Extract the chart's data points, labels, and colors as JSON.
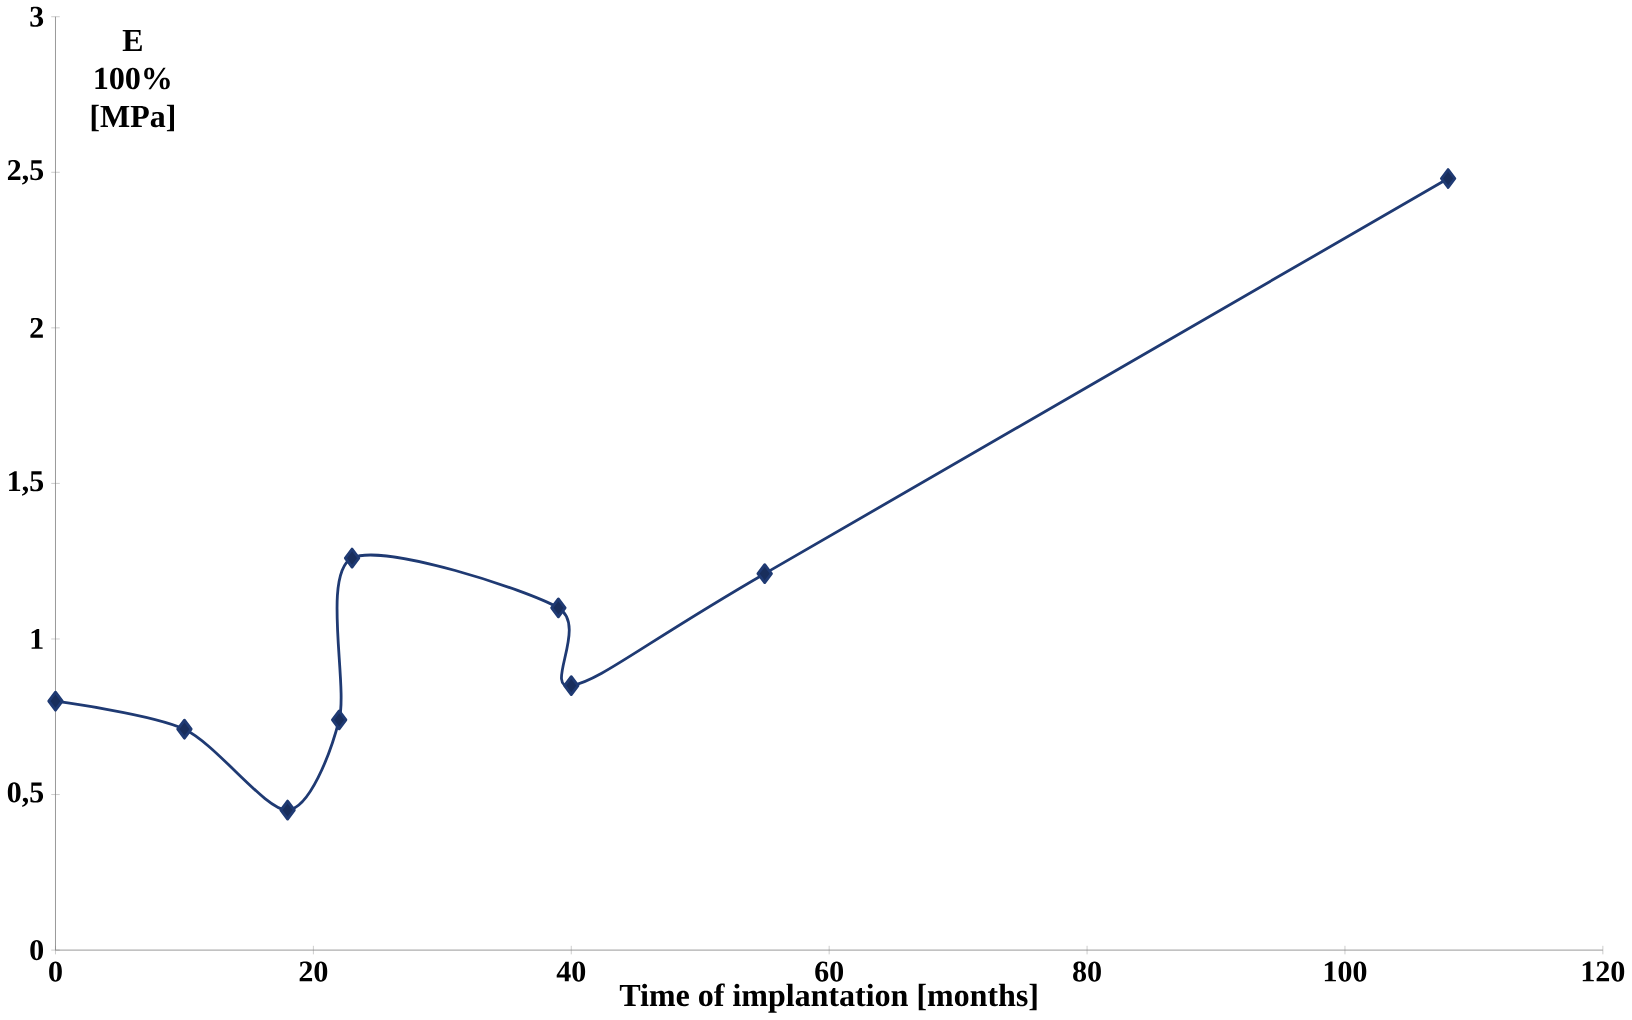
{
  "chart_data": {
    "type": "line",
    "xlabel": "Time of implantation [months]",
    "ylabel": "E 100% [MPa]",
    "x": [
      0,
      10,
      18,
      22,
      23,
      39,
      40,
      55,
      108
    ],
    "series": [
      {
        "color": "#1f3a73",
        "values": [
          0.8,
          0.71,
          0.45,
          0.74,
          1.26,
          1.1,
          0.85,
          1.21,
          2.48
        ]
      }
    ],
    "marker": "diamond",
    "line_style": "solid",
    "grid": false,
    "xlim": [
      0,
      120
    ],
    "xticks": [
      0,
      20,
      40,
      60,
      80,
      100,
      120
    ],
    "ylim": [
      0,
      3
    ],
    "yticks": [
      0,
      {
        "value": 0.5,
        "label": "0,5"
      },
      1,
      {
        "value": 1.5,
        "label": "1,5"
      },
      2,
      {
        "value": 2.5,
        "label": "2,5"
      },
      3
    ]
  }
}
